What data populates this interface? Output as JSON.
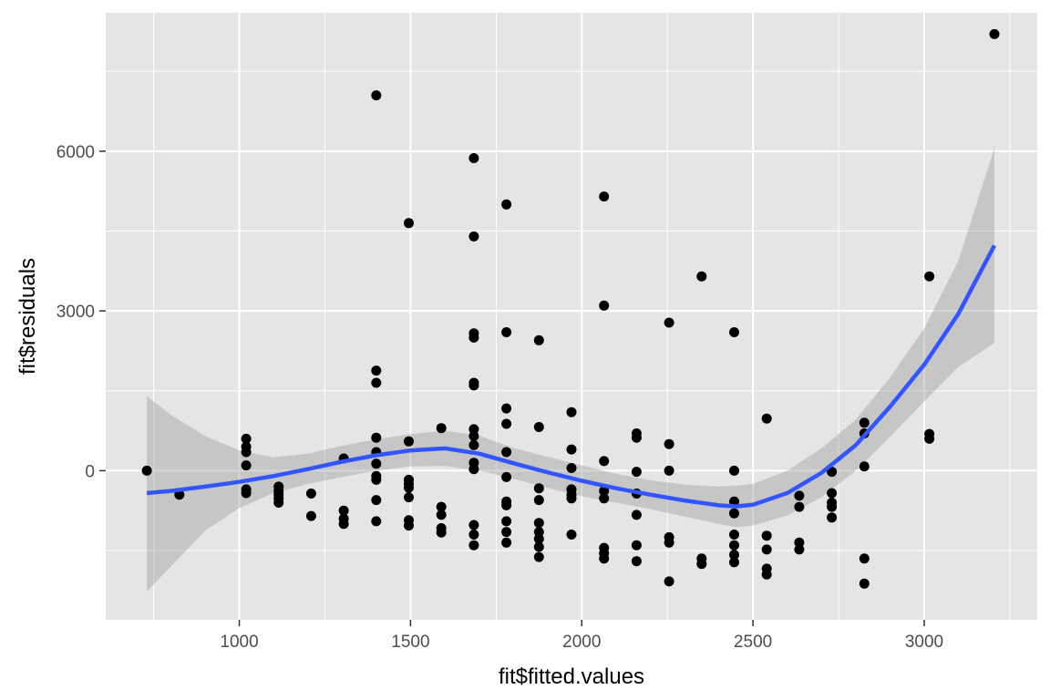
{
  "chart_data": {
    "type": "scatter",
    "title": "",
    "xlabel": "fit$fitted.values",
    "ylabel": "fit$residuals",
    "xlim": [
      610,
      3330
    ],
    "ylim": [
      -2800,
      8600
    ],
    "x_ticks": [
      1000,
      1500,
      2000,
      2500,
      3000
    ],
    "y_ticks": [
      0,
      3000,
      6000
    ],
    "grid": true,
    "legend": "none",
    "colors": {
      "panel": "#e5e5e5",
      "grid": "#ffffff",
      "points": "#000000",
      "smooth_line": "#3355ff",
      "band": "#999999"
    },
    "points": [
      [
        730,
        0
      ],
      [
        825,
        -450
      ],
      [
        1020,
        600
      ],
      [
        1020,
        450
      ],
      [
        1020,
        350
      ],
      [
        1020,
        100
      ],
      [
        1020,
        -350
      ],
      [
        1020,
        -420
      ],
      [
        1115,
        -300
      ],
      [
        1115,
        -380
      ],
      [
        1115,
        -450
      ],
      [
        1115,
        -520
      ],
      [
        1115,
        -600
      ],
      [
        1210,
        -430
      ],
      [
        1210,
        -850
      ],
      [
        1305,
        230
      ],
      [
        1305,
        -750
      ],
      [
        1305,
        -900
      ],
      [
        1305,
        -1000
      ],
      [
        1400,
        7050
      ],
      [
        1400,
        1880
      ],
      [
        1400,
        1650
      ],
      [
        1400,
        620
      ],
      [
        1400,
        350
      ],
      [
        1400,
        130
      ],
      [
        1400,
        -100
      ],
      [
        1400,
        -170
      ],
      [
        1400,
        -550
      ],
      [
        1400,
        -950
      ],
      [
        1495,
        4650
      ],
      [
        1495,
        550
      ],
      [
        1495,
        -170
      ],
      [
        1495,
        -250
      ],
      [
        1495,
        -320
      ],
      [
        1495,
        -500
      ],
      [
        1495,
        -930
      ],
      [
        1495,
        -1030
      ],
      [
        1590,
        800
      ],
      [
        1590,
        -680
      ],
      [
        1590,
        -830
      ],
      [
        1590,
        -1080
      ],
      [
        1590,
        -1160
      ],
      [
        1685,
        5870
      ],
      [
        1685,
        4400
      ],
      [
        1685,
        2580
      ],
      [
        1685,
        2500
      ],
      [
        1685,
        1650
      ],
      [
        1685,
        1600
      ],
      [
        1685,
        780
      ],
      [
        1685,
        650
      ],
      [
        1685,
        480
      ],
      [
        1685,
        150
      ],
      [
        1685,
        30
      ],
      [
        1685,
        -1020
      ],
      [
        1685,
        -1200
      ],
      [
        1685,
        -1400
      ],
      [
        1780,
        5000
      ],
      [
        1780,
        2600
      ],
      [
        1780,
        1170
      ],
      [
        1780,
        880
      ],
      [
        1780,
        350
      ],
      [
        1780,
        -120
      ],
      [
        1780,
        -580
      ],
      [
        1780,
        -650
      ],
      [
        1780,
        -950
      ],
      [
        1780,
        -1150
      ],
      [
        1780,
        -1350
      ],
      [
        1875,
        2450
      ],
      [
        1875,
        820
      ],
      [
        1875,
        -330
      ],
      [
        1875,
        -550
      ],
      [
        1875,
        -980
      ],
      [
        1875,
        -1150
      ],
      [
        1875,
        -1280
      ],
      [
        1875,
        -1430
      ],
      [
        1875,
        -1620
      ],
      [
        1970,
        1100
      ],
      [
        1970,
        400
      ],
      [
        1970,
        50
      ],
      [
        1970,
        -350
      ],
      [
        1970,
        -450
      ],
      [
        1970,
        -520
      ],
      [
        1970,
        -1200
      ],
      [
        2065,
        5150
      ],
      [
        2065,
        3100
      ],
      [
        2065,
        180
      ],
      [
        2065,
        -380
      ],
      [
        2065,
        -520
      ],
      [
        2065,
        -1450
      ],
      [
        2065,
        -1550
      ],
      [
        2065,
        -1650
      ],
      [
        2160,
        700
      ],
      [
        2160,
        620
      ],
      [
        2160,
        -20
      ],
      [
        2160,
        -430
      ],
      [
        2160,
        -830
      ],
      [
        2160,
        -1400
      ],
      [
        2160,
        -1700
      ],
      [
        2255,
        2780
      ],
      [
        2255,
        500
      ],
      [
        2255,
        0
      ],
      [
        2255,
        -1250
      ],
      [
        2255,
        -1350
      ],
      [
        2255,
        -2080
      ],
      [
        2350,
        3650
      ],
      [
        2350,
        -1650
      ],
      [
        2350,
        -1750
      ],
      [
        2445,
        2600
      ],
      [
        2445,
        0
      ],
      [
        2445,
        -580
      ],
      [
        2445,
        -800
      ],
      [
        2445,
        -1200
      ],
      [
        2445,
        -1400
      ],
      [
        2445,
        -1580
      ],
      [
        2445,
        -1720
      ],
      [
        2540,
        980
      ],
      [
        2540,
        -1220
      ],
      [
        2540,
        -1480
      ],
      [
        2540,
        -1840
      ],
      [
        2540,
        -1950
      ],
      [
        2635,
        -470
      ],
      [
        2635,
        -680
      ],
      [
        2635,
        -1350
      ],
      [
        2635,
        -1480
      ],
      [
        2730,
        -20
      ],
      [
        2730,
        -420
      ],
      [
        2730,
        -600
      ],
      [
        2730,
        -680
      ],
      [
        2730,
        -880
      ],
      [
        2825,
        900
      ],
      [
        2825,
        700
      ],
      [
        2825,
        80
      ],
      [
        2825,
        -1650
      ],
      [
        2825,
        -2120
      ],
      [
        3015,
        3650
      ],
      [
        3015,
        690
      ],
      [
        3015,
        600
      ],
      [
        3205,
        8200
      ]
    ],
    "smooth": {
      "x": [
        730,
        800,
        900,
        1000,
        1100,
        1200,
        1300,
        1400,
        1500,
        1600,
        1700,
        1800,
        1900,
        2000,
        2100,
        2200,
        2300,
        2400,
        2450,
        2500,
        2600,
        2700,
        2800,
        2900,
        3000,
        3100,
        3205
      ],
      "y": [
        -420,
        -380,
        -300,
        -210,
        -100,
        30,
        170,
        290,
        380,
        420,
        320,
        140,
        -30,
        -190,
        -330,
        -450,
        -560,
        -650,
        -670,
        -640,
        -420,
        -40,
        480,
        1200,
        1990,
        2950,
        4230
      ],
      "lower": [
        -2270,
        -1800,
        -1130,
        -700,
        -420,
        -250,
        -120,
        0,
        80,
        90,
        0,
        -150,
        -320,
        -480,
        -600,
        -720,
        -860,
        -1000,
        -1060,
        -1030,
        -840,
        -500,
        0,
        640,
        1300,
        1950,
        2400
      ],
      "upper": [
        1400,
        1050,
        650,
        380,
        250,
        320,
        470,
        590,
        690,
        750,
        660,
        430,
        260,
        100,
        -60,
        -180,
        -260,
        -300,
        -280,
        -250,
        0,
        420,
        960,
        1750,
        2670,
        3950,
        6060
      ]
    }
  }
}
